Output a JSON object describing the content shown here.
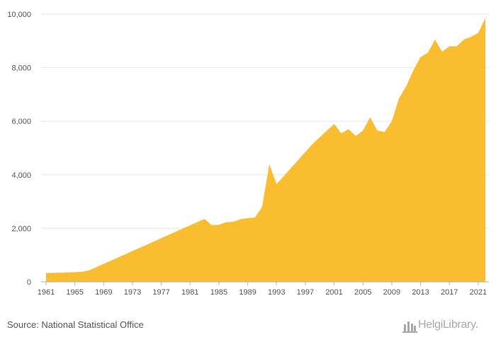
{
  "chart_data": {
    "type": "area",
    "x": [
      1961,
      1962,
      1963,
      1964,
      1965,
      1966,
      1967,
      1968,
      1969,
      1970,
      1971,
      1972,
      1973,
      1974,
      1975,
      1976,
      1977,
      1978,
      1979,
      1980,
      1981,
      1982,
      1983,
      1984,
      1985,
      1986,
      1987,
      1988,
      1989,
      1990,
      1991,
      1992,
      1993,
      1994,
      1995,
      1996,
      1997,
      1998,
      1999,
      2000,
      2001,
      2002,
      2003,
      2004,
      2005,
      2006,
      2007,
      2008,
      2009,
      2010,
      2011,
      2012,
      2013,
      2014,
      2015,
      2016,
      2017,
      2018,
      2019,
      2020,
      2021,
      2022
    ],
    "series": [
      {
        "values": [
          330,
          335,
          340,
          350,
          360,
          375,
          430,
          550,
          670,
          790,
          910,
          1030,
          1150,
          1270,
          1390,
          1510,
          1630,
          1750,
          1870,
          1990,
          2110,
          2230,
          2350,
          2120,
          2130,
          2230,
          2240,
          2340,
          2380,
          2400,
          2800,
          4400,
          3650,
          3950,
          4250,
          4550,
          4850,
          5150,
          5400,
          5650,
          5900,
          5550,
          5700,
          5450,
          5650,
          6150,
          5650,
          5600,
          6000,
          6850,
          7300,
          7900,
          8400,
          8550,
          9050,
          8600,
          8800,
          8800,
          9050,
          9150,
          9300,
          9850
        ]
      }
    ],
    "xticks": [
      "1961",
      "1965",
      "1969",
      "1973",
      "1977",
      "1981",
      "1985",
      "1989",
      "1993",
      "1997",
      "2001",
      "2005",
      "2009",
      "2013",
      "2017",
      "2021"
    ],
    "yticks": [
      "0",
      "2,000",
      "4,000",
      "6,000",
      "8,000",
      "10,000"
    ],
    "ylim": [
      0,
      10000
    ],
    "grid": true,
    "fill_color": "#fbbd30"
  },
  "source": "Source: National Statistical Office",
  "brand": "HelgiLibrary."
}
